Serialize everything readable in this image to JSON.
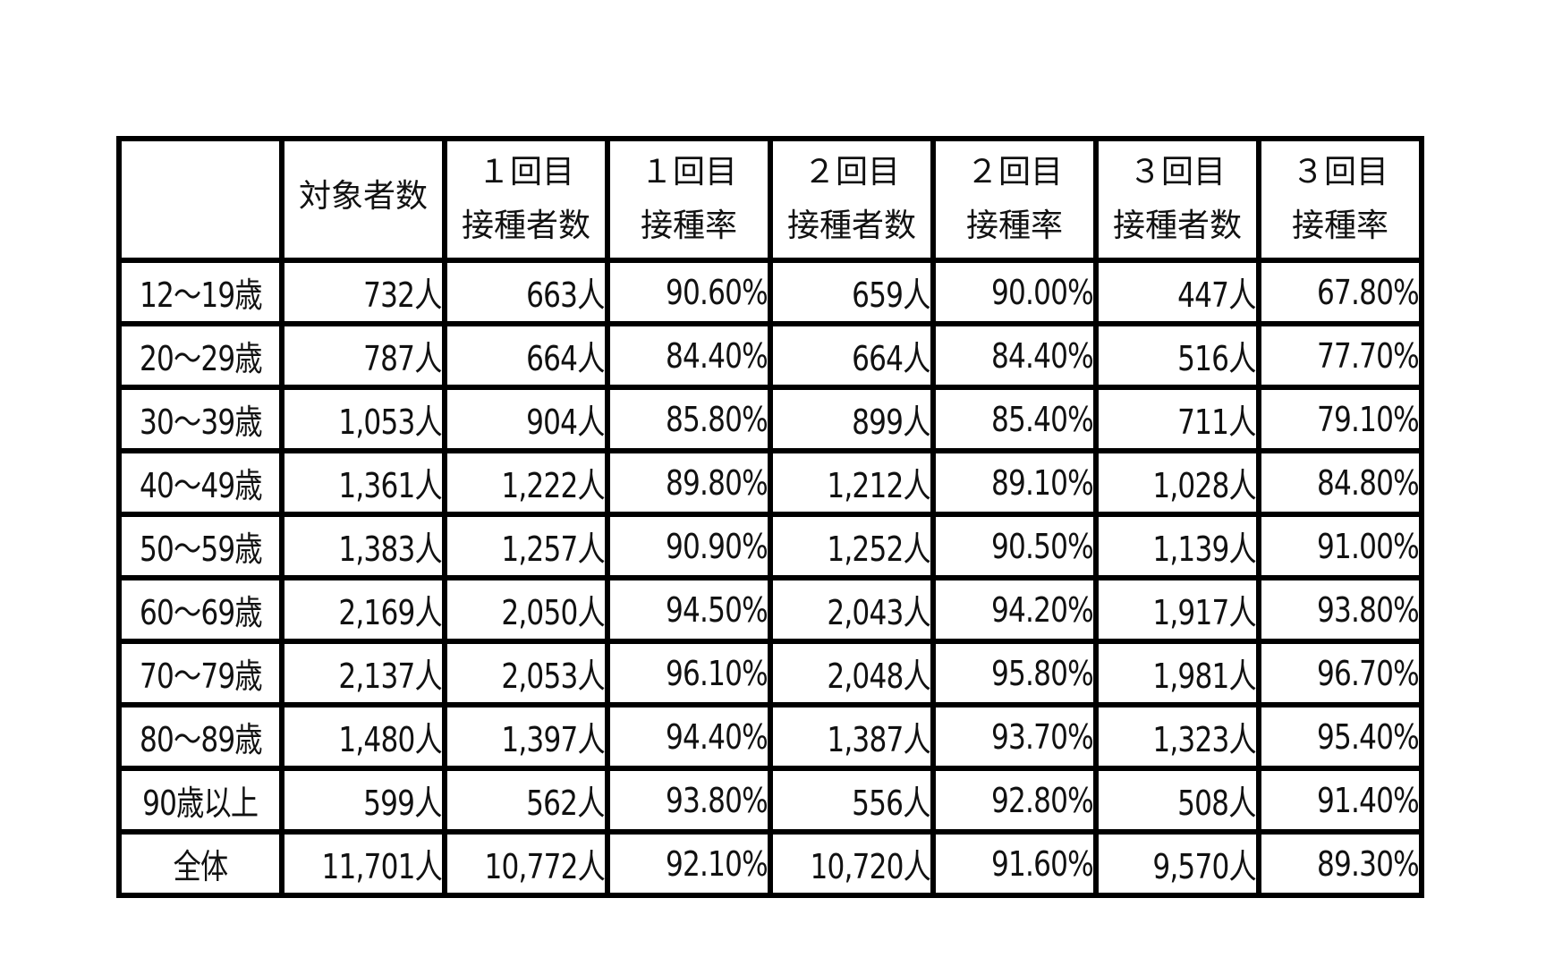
{
  "table": {
    "headers": [
      {
        "line1": "",
        "line2": ""
      },
      {
        "line1": "対象者数",
        "line2": ""
      },
      {
        "line1": "１回目",
        "line2": "接種者数"
      },
      {
        "line1": "１回目",
        "line2": "接種率"
      },
      {
        "line1": "２回目",
        "line2": "接種者数"
      },
      {
        "line1": "２回目",
        "line2": "接種率"
      },
      {
        "line1": "３回目",
        "line2": "接種者数"
      },
      {
        "line1": "３回目",
        "line2": "接種率"
      }
    ],
    "rows": [
      {
        "age": "12～19歳",
        "target": "732人",
        "dose1_count": "663人",
        "dose1_rate": "90.60%",
        "dose2_count": "659人",
        "dose2_rate": "90.00%",
        "dose3_count": "447人",
        "dose3_rate": "67.80%"
      },
      {
        "age": "20～29歳",
        "target": "787人",
        "dose1_count": "664人",
        "dose1_rate": "84.40%",
        "dose2_count": "664人",
        "dose2_rate": "84.40%",
        "dose3_count": "516人",
        "dose3_rate": "77.70%"
      },
      {
        "age": "30～39歳",
        "target": "1,053人",
        "dose1_count": "904人",
        "dose1_rate": "85.80%",
        "dose2_count": "899人",
        "dose2_rate": "85.40%",
        "dose3_count": "711人",
        "dose3_rate": "79.10%"
      },
      {
        "age": "40～49歳",
        "target": "1,361人",
        "dose1_count": "1,222人",
        "dose1_rate": "89.80%",
        "dose2_count": "1,212人",
        "dose2_rate": "89.10%",
        "dose3_count": "1,028人",
        "dose3_rate": "84.80%"
      },
      {
        "age": "50～59歳",
        "target": "1,383人",
        "dose1_count": "1,257人",
        "dose1_rate": "90.90%",
        "dose2_count": "1,252人",
        "dose2_rate": "90.50%",
        "dose3_count": "1,139人",
        "dose3_rate": "91.00%"
      },
      {
        "age": "60～69歳",
        "target": "2,169人",
        "dose1_count": "2,050人",
        "dose1_rate": "94.50%",
        "dose2_count": "2,043人",
        "dose2_rate": "94.20%",
        "dose3_count": "1,917人",
        "dose3_rate": "93.80%"
      },
      {
        "age": "70～79歳",
        "target": "2,137人",
        "dose1_count": "2,053人",
        "dose1_rate": "96.10%",
        "dose2_count": "2,048人",
        "dose2_rate": "95.80%",
        "dose3_count": "1,981人",
        "dose3_rate": "96.70%"
      },
      {
        "age": "80～89歳",
        "target": "1,480人",
        "dose1_count": "1,397人",
        "dose1_rate": "94.40%",
        "dose2_count": "1,387人",
        "dose2_rate": "93.70%",
        "dose3_count": "1,323人",
        "dose3_rate": "95.40%"
      },
      {
        "age": "90歳以上",
        "target": "599人",
        "dose1_count": "562人",
        "dose1_rate": "93.80%",
        "dose2_count": "556人",
        "dose2_rate": "92.80%",
        "dose3_count": "508人",
        "dose3_rate": "91.40%"
      },
      {
        "age": "全体",
        "target": "11,701人",
        "dose1_count": "10,772人",
        "dose1_rate": "92.10%",
        "dose2_count": "10,720人",
        "dose2_rate": "91.60%",
        "dose3_count": "9,570人",
        "dose3_rate": "89.30%"
      }
    ]
  }
}
